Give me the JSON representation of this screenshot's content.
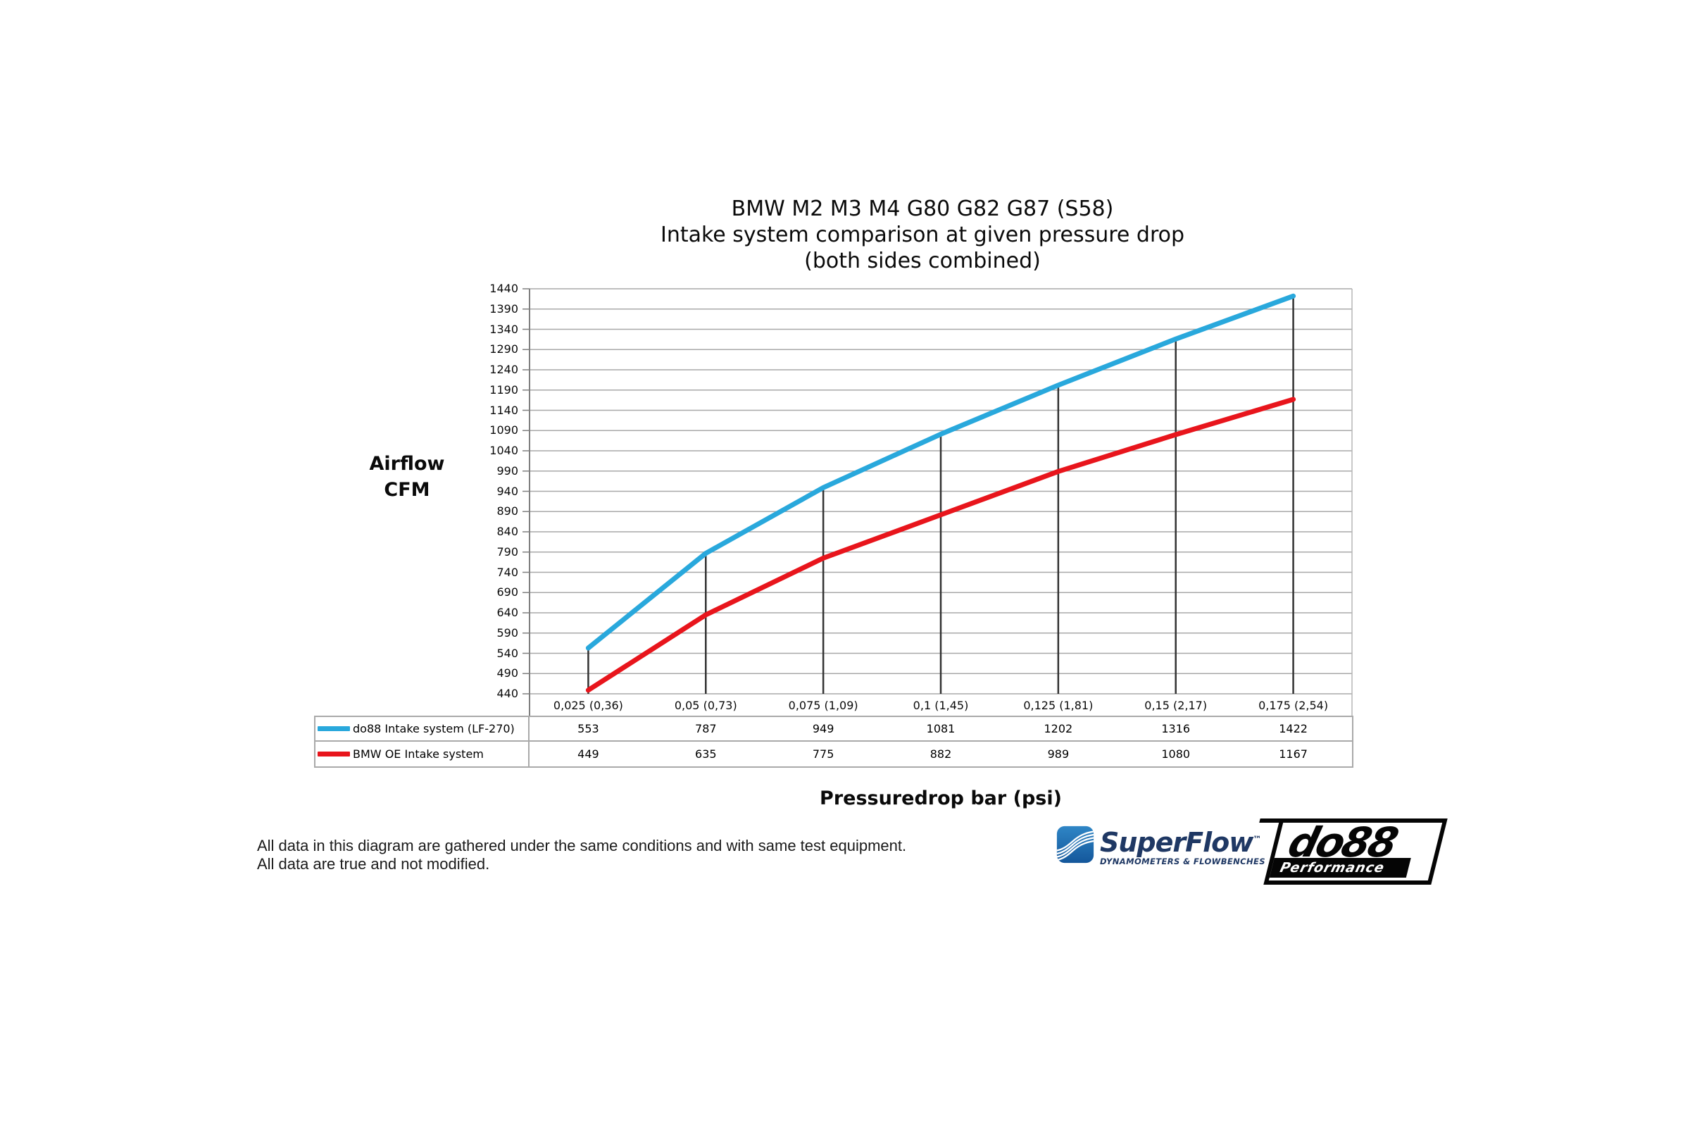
{
  "title": {
    "line1": "BMW M2 M3 M4 G80 G82 G87 (S58)",
    "line2": "Intake system comparison at given pressure drop",
    "line3": "(both sides combined)"
  },
  "y_axis": {
    "label_line1": "Airflow",
    "label_line2": "CFM"
  },
  "x_axis": {
    "label": "Pressuredrop bar (psi)"
  },
  "chart_data": {
    "type": "line",
    "title": "BMW M2 M3 M4 G80 G82 G87 (S58) — Intake system comparison at given pressure drop (both sides combined)",
    "xlabel": "Pressuredrop bar (psi)",
    "ylabel": "Airflow CFM",
    "categories": [
      "0,025 (0,36)",
      "0,05 (0,73)",
      "0,075 (1,09)",
      "0,1 (1,45)",
      "0,125 (1,81)",
      "0,15 (2,17)",
      "0,175 (2,54)"
    ],
    "series": [
      {
        "name": "do88 Intake system (LF-270)",
        "color": "#29a8dc",
        "values": [
          553,
          787,
          949,
          1081,
          1202,
          1316,
          1422
        ]
      },
      {
        "name": "BMW OE Intake system",
        "color": "#e8151c",
        "values": [
          449,
          635,
          775,
          882,
          989,
          1080,
          1167
        ]
      }
    ],
    "ylim": [
      440,
      1440
    ],
    "ytick_step": 50,
    "grid": true,
    "legend_position": "table-left",
    "droplines": "vertical black line at each category from top series point to x-axis"
  },
  "footer": {
    "line1": "All data in this diagram are gathered under the same conditions and with same test equipment.",
    "line2": "All data are true and not modified."
  },
  "logos": {
    "superflow": {
      "wordmark": "SuperFlow",
      "trademark": "™",
      "tagline": "DYNAMOMETERS & FLOWBENCHES",
      "icon_blue": "#1b72b8",
      "text_color": "#1f3864"
    },
    "do88": {
      "wordmark": "do88",
      "tagline": "Performance"
    }
  },
  "colors": {
    "gridline": "#a8a8a8",
    "axis": "#7f7f7f",
    "plot_right_border": "#b5b5b5",
    "dropline": "#333333",
    "table_border": "#a9a9a9",
    "background": "#ffffff"
  }
}
